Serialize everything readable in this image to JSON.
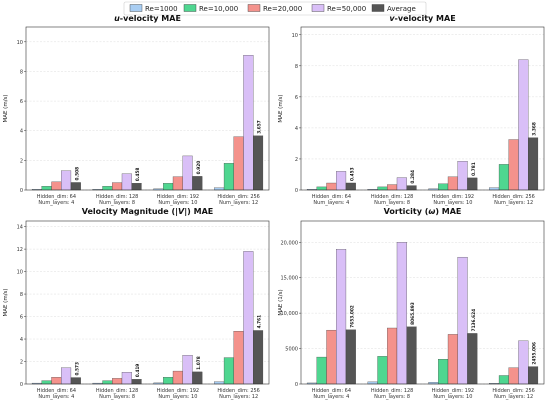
{
  "legend": {
    "entries": [
      {
        "label": "Re=1000",
        "color": "#a8cdf2"
      },
      {
        "label": "Re=10,000",
        "color": "#4fd690"
      },
      {
        "label": "Re=20,000",
        "color": "#f4928c"
      },
      {
        "label": "Re=50,000",
        "color": "#d9bff7"
      },
      {
        "label": "Average",
        "color": "#555555"
      }
    ]
  },
  "chart_data": [
    {
      "type": "bar",
      "title": "u-velocity MAE",
      "title_parts": {
        "prefix": "",
        "italic": "u",
        "suffix": "-velocity MAE"
      },
      "ylabel": "MAE (m/s)",
      "ylim": [
        0,
        11
      ],
      "yticks": [
        0,
        2,
        4,
        6,
        8,
        10
      ],
      "ytick_labels": [
        "0",
        "2",
        "4",
        "6",
        "8",
        "10"
      ],
      "categories": [
        "Hidden_dim: 64\nNum_layers: 4",
        "Hidden_dim: 128\nNum_layers: 8",
        "Hidden_dim: 192\nNum_layers: 10",
        "Hidden_dim: 256\nNum_layers: 12"
      ],
      "series": [
        {
          "name": "Re=1000",
          "values": [
            0.05,
            0.05,
            0.08,
            0.15
          ]
        },
        {
          "name": "Re=10,000",
          "values": [
            0.25,
            0.25,
            0.45,
            1.8
          ]
        },
        {
          "name": "Re=20,000",
          "values": [
            0.55,
            0.5,
            0.9,
            3.6
          ]
        },
        {
          "name": "Re=50,000",
          "values": [
            1.3,
            1.1,
            2.3,
            9.1
          ]
        },
        {
          "name": "Average",
          "values": [
            0.508,
            0.458,
            0.92,
            3.657
          ]
        }
      ],
      "value_labels": [
        "0.508",
        "0.458",
        "0.920",
        "3.657"
      ],
      "grid": true
    },
    {
      "type": "bar",
      "title": "v-velocity MAE",
      "title_parts": {
        "prefix": "",
        "italic": "v",
        "suffix": "-velocity MAE"
      },
      "ylabel": "MAE (m/s)",
      "ylim": [
        0,
        10.5
      ],
      "yticks": [
        0,
        2,
        4,
        6,
        8,
        10
      ],
      "ytick_labels": [
        "0",
        "2",
        "4",
        "6",
        "8",
        "10"
      ],
      "categories": [
        "Hidden_dim: 64\nNum_layers: 4",
        "Hidden_dim: 128\nNum_layers: 8",
        "Hidden_dim: 192\nNum_layers: 10",
        "Hidden_dim: 256\nNum_layers: 12"
      ],
      "series": [
        {
          "name": "Re=1000",
          "values": [
            0.05,
            0.05,
            0.08,
            0.15
          ]
        },
        {
          "name": "Re=10,000",
          "values": [
            0.2,
            0.2,
            0.4,
            1.65
          ]
        },
        {
          "name": "Re=20,000",
          "values": [
            0.45,
            0.35,
            0.85,
            3.25
          ]
        },
        {
          "name": "Re=50,000",
          "values": [
            1.2,
            0.8,
            1.85,
            8.4
          ]
        },
        {
          "name": "Average",
          "values": [
            0.453,
            0.284,
            0.781,
            3.368
          ]
        }
      ],
      "value_labels": [
        "0.453",
        "0.284",
        "0.781",
        "3.368"
      ],
      "grid": true
    },
    {
      "type": "bar",
      "title": "Velocity Magnitude (|V|) MAE",
      "title_parts": {
        "prefix": "Velocity Magnitude (",
        "italic": "|V|",
        "suffix": ") MAE"
      },
      "ylabel": "MAE (m/s)",
      "ylim": [
        0,
        14.5
      ],
      "yticks": [
        0,
        2,
        4,
        6,
        8,
        10,
        12,
        14
      ],
      "ytick_labels": [
        "0",
        "2",
        "4",
        "6",
        "8",
        "10",
        "12",
        "14"
      ],
      "categories": [
        "Hidden_dim: 64\nNum_layers: 4",
        "Hidden_dim: 128\nNum_layers: 8",
        "Hidden_dim: 192\nNum_layers: 10",
        "Hidden_dim: 256\nNum_layers: 12"
      ],
      "series": [
        {
          "name": "Re=1000",
          "values": [
            0.08,
            0.08,
            0.1,
            0.2
          ]
        },
        {
          "name": "Re=10,000",
          "values": [
            0.3,
            0.3,
            0.6,
            2.35
          ]
        },
        {
          "name": "Re=20,000",
          "values": [
            0.6,
            0.5,
            1.15,
            4.7
          ]
        },
        {
          "name": "Re=50,000",
          "values": [
            1.45,
            1.05,
            2.55,
            11.8
          ]
        },
        {
          "name": "Average",
          "values": [
            0.573,
            0.419,
            1.078,
            4.761
          ]
        }
      ],
      "value_labels": [
        "0.573",
        "0.419",
        "1.078",
        "4.761"
      ],
      "grid": true
    },
    {
      "type": "bar",
      "title": "Vorticity (ω) MAE",
      "title_parts": {
        "prefix": "Vorticity (",
        "italic": "ω",
        "suffix": ") MAE"
      },
      "ylabel": "MAE (1/s)",
      "ylim": [
        0,
        23000
      ],
      "yticks": [
        0,
        5000,
        10000,
        15000,
        20000
      ],
      "ytick_labels": [
        "0",
        "5000",
        "10,000",
        "15,000",
        "20,000"
      ],
      "categories": [
        "Hidden_dim: 64\nNum_layers: 4",
        "Hidden_dim: 128\nNum_layers: 8",
        "Hidden_dim: 192\nNum_layers: 10",
        "Hidden_dim: 256\nNum_layers: 12"
      ],
      "series": [
        {
          "name": "Re=1000",
          "values": [
            150,
            300,
            250,
            100
          ]
        },
        {
          "name": "Re=10,000",
          "values": [
            3800,
            3900,
            3500,
            1200
          ]
        },
        {
          "name": "Re=20,000",
          "values": [
            7600,
            7900,
            7000,
            2300
          ]
        },
        {
          "name": "Re=50,000",
          "values": [
            19000,
            20000,
            17900,
            6100
          ]
        },
        {
          "name": "Average",
          "values": [
            7653.002,
            8065.893,
            7136.624,
            2455.006
          ]
        }
      ],
      "value_labels": [
        "7653.002",
        "8065.893",
        "7136.624",
        "2455.006"
      ],
      "grid": true
    }
  ]
}
